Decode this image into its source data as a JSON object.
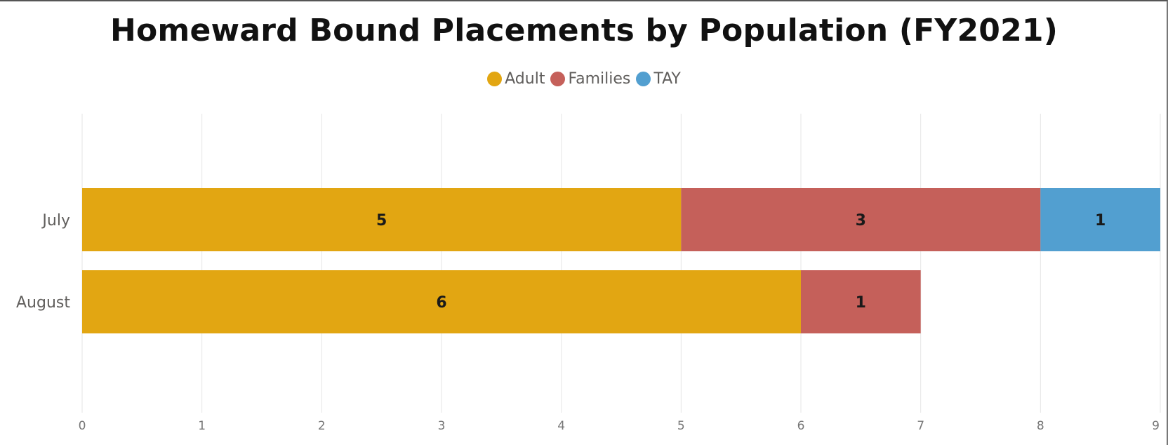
{
  "chart_data": {
    "type": "bar",
    "orientation": "horizontal",
    "stacked": true,
    "title": "Homeward Bound Placements by Population (FY2021)",
    "xlabel": "",
    "ylabel": "",
    "categories": [
      "July",
      "August"
    ],
    "series": [
      {
        "name": "Adult",
        "color": "#E2A612",
        "values": [
          5,
          6
        ]
      },
      {
        "name": "Families",
        "color": "#C5605A",
        "values": [
          3,
          1
        ]
      },
      {
        "name": "TAY",
        "color": "#529FD0",
        "values": [
          1,
          null
        ]
      }
    ],
    "xlim": [
      0,
      9
    ],
    "xticks": [
      "0",
      "1",
      "2",
      "3",
      "4",
      "5",
      "6",
      "7",
      "8",
      "9"
    ],
    "grid": true,
    "legend_position": "top-center",
    "data_labels": true
  }
}
